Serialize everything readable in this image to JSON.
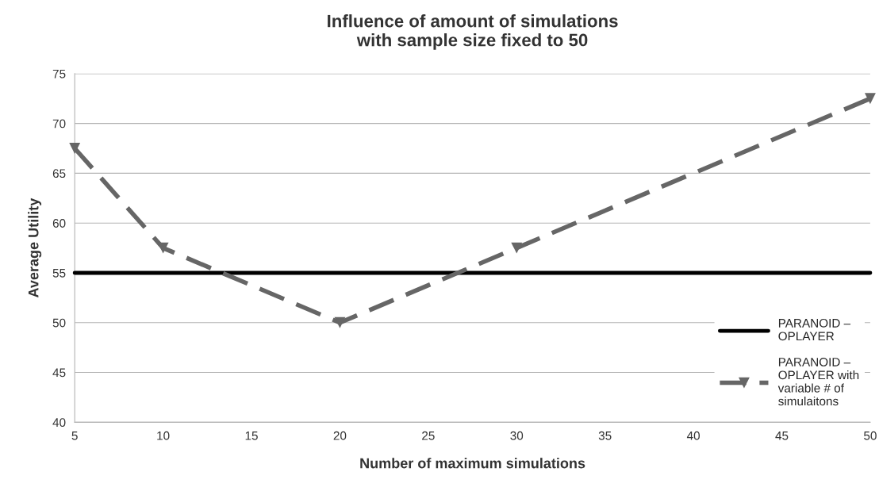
{
  "chart_data": {
    "type": "line",
    "title": "Influence of amount of simulations\nwith sample size fixed to 50",
    "xlabel": "Number of maximum simulations",
    "ylabel": "Average Utility",
    "series": [
      {
        "name": "PARANOID –\nOPLAYER",
        "color": "#000000",
        "x": [
          5,
          50
        ],
        "values": [
          55,
          55
        ],
        "marker": "none",
        "line_style": "solid"
      },
      {
        "name": "PARANOID –\nOPLAYER with\nvariable # of\nsimulaitons",
        "color": "#666666",
        "x": [
          5,
          10,
          20,
          30,
          50
        ],
        "values": [
          67.5,
          57.5,
          50,
          57.5,
          72.5
        ],
        "marker": "triangle",
        "line_style": "dashed"
      }
    ],
    "xlim": [
      5,
      50
    ],
    "xticks": [
      5,
      10,
      15,
      20,
      25,
      30,
      35,
      40,
      45,
      50
    ],
    "ylim": [
      40,
      75
    ],
    "yticks": [
      40,
      45,
      50,
      55,
      60,
      65,
      70,
      75
    ],
    "grid": "y",
    "legend": "right"
  }
}
